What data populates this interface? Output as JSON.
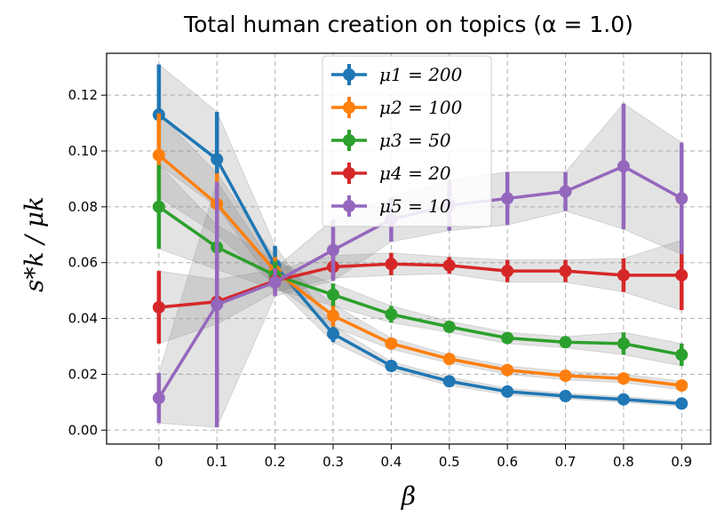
{
  "chart_data": {
    "type": "line",
    "title": "Total human creation on topics (α = 1.0)",
    "xlabel": "β",
    "ylabel": "s*k / μk",
    "x": [
      0,
      0.1,
      0.2,
      0.3,
      0.4,
      0.5,
      0.6,
      0.7,
      0.8,
      0.9
    ],
    "x_tick_labels": [
      "0",
      "0.1",
      "0.2",
      "0.3",
      "0.4",
      "0.5",
      "0.6",
      "0.7",
      "0.8",
      "0.9"
    ],
    "y_ticks": [
      0.0,
      0.02,
      0.04,
      0.06,
      0.08,
      0.1,
      0.12
    ],
    "y_tick_labels": [
      "0.00",
      "0.02",
      "0.04",
      "0.06",
      "0.08",
      "0.10",
      "0.12"
    ],
    "xlim": [
      -0.09,
      0.95
    ],
    "ylim": [
      -0.005,
      0.135
    ],
    "grid": true,
    "legend_position": "top-center",
    "series": [
      {
        "name": "μ1 = 200",
        "color": "#1f77b4",
        "values": [
          0.113,
          0.097,
          0.059,
          0.0345,
          0.023,
          0.0175,
          0.0138,
          0.0122,
          0.011,
          0.0095
        ],
        "errors": [
          0.018,
          0.017,
          0.007,
          0.003,
          0.0015,
          0.0015,
          0.0012,
          0.001,
          0.001,
          0.001
        ]
      },
      {
        "name": "μ2 = 100",
        "color": "#ff7f0e",
        "values": [
          0.0985,
          0.081,
          0.057,
          0.041,
          0.031,
          0.0255,
          0.0215,
          0.0195,
          0.0185,
          0.016
        ],
        "errors": [
          0.015,
          0.011,
          0.005,
          0.004,
          0.002,
          0.0015,
          0.0015,
          0.0015,
          0.0015,
          0.0015
        ]
      },
      {
        "name": "μ3 = 50",
        "color": "#2ca02c",
        "values": [
          0.08,
          0.0655,
          0.0555,
          0.0485,
          0.0415,
          0.037,
          0.033,
          0.0315,
          0.031,
          0.027
        ],
        "errors": [
          0.015,
          0.008,
          0.005,
          0.004,
          0.003,
          0.002,
          0.002,
          0.002,
          0.004,
          0.004
        ]
      },
      {
        "name": "μ4 = 20",
        "color": "#d62728",
        "values": [
          0.044,
          0.046,
          0.0535,
          0.0585,
          0.0595,
          0.059,
          0.057,
          0.057,
          0.0555,
          0.0555
        ],
        "errors": [
          0.013,
          0.008,
          0.004,
          0.004,
          0.004,
          0.003,
          0.004,
          0.004,
          0.006,
          0.0125
        ]
      },
      {
        "name": "μ5 = 10",
        "color": "#9467bd",
        "values": [
          0.0115,
          0.045,
          0.053,
          0.0645,
          0.0755,
          0.0805,
          0.083,
          0.0855,
          0.0945,
          0.083
        ],
        "errors": [
          0.009,
          0.044,
          0.005,
          0.011,
          0.008,
          0.009,
          0.0095,
          0.007,
          0.0225,
          0.02
        ]
      }
    ]
  }
}
